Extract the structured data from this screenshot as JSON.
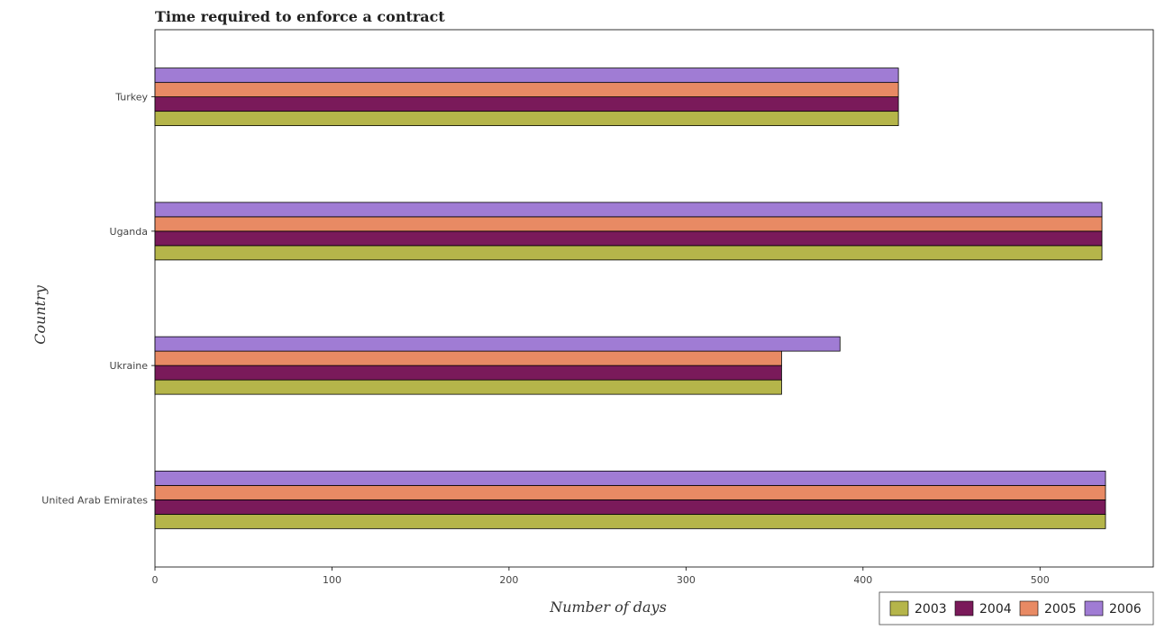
{
  "chart_data": {
    "type": "bar",
    "orientation": "horizontal",
    "title": "Time required to enforce a contract",
    "xlabel": "Number of days",
    "ylabel": "Country",
    "categories": [
      "Turkey",
      "Uganda",
      "Ukraine",
      "United Arab Emirates"
    ],
    "series": [
      {
        "name": "2003",
        "color": "#b5b54a",
        "values": [
          420,
          535,
          354,
          537
        ]
      },
      {
        "name": "2004",
        "color": "#7a1a5a",
        "values": [
          420,
          535,
          354,
          537
        ]
      },
      {
        "name": "2005",
        "color": "#e88a64",
        "values": [
          420,
          535,
          354,
          537
        ]
      },
      {
        "name": "2006",
        "color": "#a07cd4",
        "values": [
          420,
          535,
          387,
          537
        ]
      }
    ],
    "xlim": [
      0,
      564
    ],
    "xticks": [
      0,
      100,
      200,
      300,
      400,
      500
    ],
    "grid": false,
    "legend_position": "bottom-right"
  }
}
